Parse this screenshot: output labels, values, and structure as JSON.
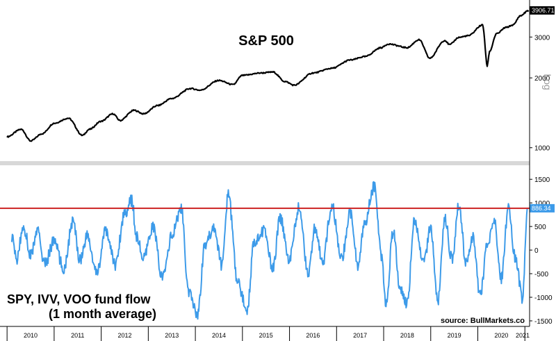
{
  "chart_data": [
    {
      "type": "line",
      "title": "S&P 500",
      "scale": "log",
      "ylim": [
        900,
        4100
      ],
      "yticks": [
        1000,
        2000,
        3000
      ],
      "ytick_labels": [
        "1000",
        "2000",
        "3000"
      ],
      "axis_note": "Log",
      "last_value_label": "3906.71",
      "color": "#000000",
      "series": [
        {
          "x": [
            2010.0,
            2010.3,
            2010.5,
            2010.75,
            2011.0,
            2011.3,
            2011.6,
            2011.75,
            2012.0,
            2012.25,
            2012.4,
            2012.7,
            2012.9,
            2013.2,
            2013.5,
            2013.9,
            2014.1,
            2014.5,
            2014.8,
            2015.0,
            2015.4,
            2015.65,
            2015.9,
            2016.1,
            2016.5,
            2016.9,
            2017.3,
            2017.6,
            2017.95,
            2018.1,
            2018.5,
            2018.75,
            2018.98,
            2019.3,
            2019.4,
            2019.6,
            2019.8,
            2020.1,
            2020.2,
            2020.25,
            2020.4,
            2020.6,
            2020.75,
            2020.9,
            2021.08
          ],
          "y": [
            1115,
            1200,
            1070,
            1150,
            1275,
            1340,
            1130,
            1200,
            1300,
            1400,
            1310,
            1450,
            1400,
            1520,
            1630,
            1800,
            1770,
            1950,
            1870,
            2050,
            2100,
            2120,
            1930,
            1860,
            2100,
            2200,
            2390,
            2470,
            2700,
            2800,
            2700,
            2920,
            2430,
            2900,
            2780,
            2990,
            3040,
            3380,
            2250,
            2600,
            3100,
            3300,
            3380,
            3700,
            3906.71
          ]
        }
      ]
    },
    {
      "type": "line",
      "title": "SPY, IVV, VOO fund flow",
      "subtitle": "(1 month average)",
      "ylim": [
        -1500,
        1650
      ],
      "yticks": [
        -1500,
        -1000,
        -500,
        0,
        500,
        1000,
        1500
      ],
      "ytick_labels": [
        "-1500",
        "-1000",
        "-500",
        "0",
        "500",
        "1000",
        "1500"
      ],
      "last_value_label": "886.34",
      "reference_line": 886.34,
      "source": "source: BullMarkets.co",
      "color": "#3d9be9",
      "series": [
        {
          "x": [
            2010.1,
            2010.2,
            2010.35,
            2010.5,
            2010.65,
            2010.8,
            2011.0,
            2011.2,
            2011.4,
            2011.55,
            2011.7,
            2011.9,
            2012.1,
            2012.3,
            2012.5,
            2012.65,
            2012.75,
            2012.9,
            2013.1,
            2013.3,
            2013.5,
            2013.7,
            2013.85,
            2014.05,
            2014.2,
            2014.4,
            2014.55,
            2014.7,
            2014.9,
            2015.1,
            2015.25,
            2015.45,
            2015.65,
            2015.8,
            2016.0,
            2016.2,
            2016.4,
            2016.55,
            2016.7,
            2016.9,
            2017.1,
            2017.3,
            2017.45,
            2017.6,
            2017.8,
            2017.95,
            2018.05,
            2018.2,
            2018.35,
            2018.5,
            2018.65,
            2018.85,
            2019.0,
            2019.15,
            2019.3,
            2019.45,
            2019.6,
            2019.75,
            2019.9,
            2020.05,
            2020.2,
            2020.35,
            2020.5,
            2020.65,
            2020.8,
            2020.95,
            2021.05
          ],
          "y": [
            300,
            -200,
            500,
            -100,
            400,
            -300,
            200,
            -400,
            600,
            -200,
            300,
            -500,
            400,
            -300,
            800,
            1050,
            300,
            -200,
            500,
            -600,
            300,
            900,
            -900,
            -1350,
            100,
            500,
            -300,
            1150,
            -700,
            -1250,
            200,
            400,
            -400,
            700,
            -200,
            900,
            -500,
            500,
            -300,
            950,
            -200,
            800,
            -300,
            600,
            1350,
            -100,
            -1150,
            400,
            -800,
            -1150,
            600,
            -300,
            500,
            -1100,
            700,
            -200,
            950,
            -300,
            300,
            -1000,
            100,
            600,
            -600,
            900,
            -200,
            -1050,
            886.34
          ]
        }
      ]
    }
  ],
  "x_axis": {
    "labels": [
      "2010",
      "2011",
      "2012",
      "2013",
      "2014",
      "2015",
      "2016",
      "2017",
      "2018",
      "2019",
      "2020",
      "2021"
    ],
    "range": [
      2009.85,
      2021.1
    ]
  }
}
